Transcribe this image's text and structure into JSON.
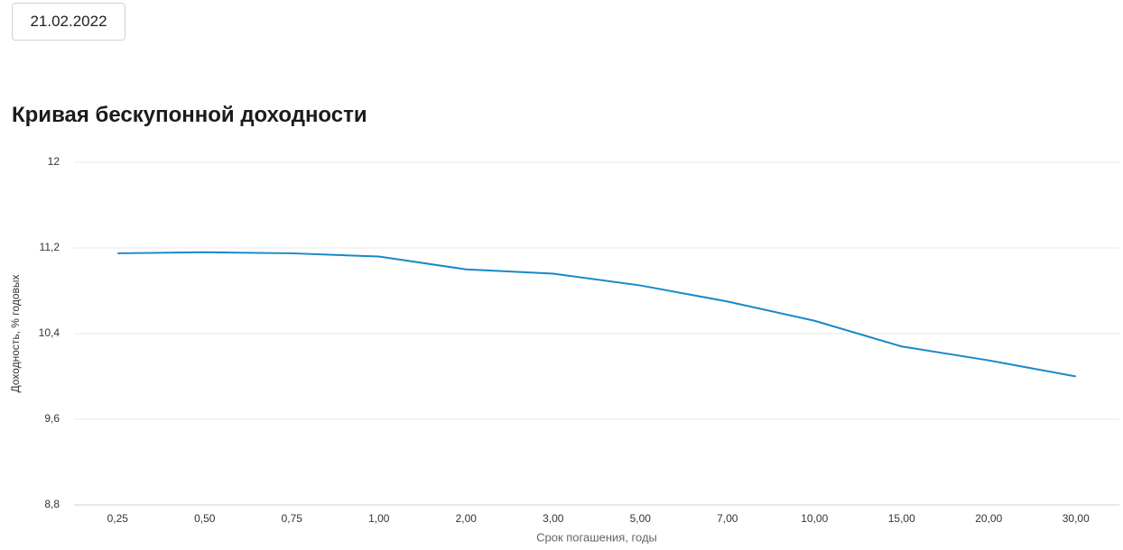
{
  "date_picker": "21.02.2022",
  "chart_data": {
    "type": "line",
    "title": "Кривая бескупонной доходности",
    "xlabel": "Срок погашения, годы",
    "ylabel": "Доходность, % годовых",
    "categories": [
      "0,25",
      "0,50",
      "0,75",
      "1,00",
      "2,00",
      "3,00",
      "5,00",
      "7,00",
      "10,00",
      "15,00",
      "20,00",
      "30,00"
    ],
    "values": [
      11.15,
      11.16,
      11.15,
      11.12,
      11.0,
      10.96,
      10.85,
      10.7,
      10.52,
      10.28,
      10.15,
      10.0
    ],
    "color": "#1a87c9",
    "ylim": [
      8.8,
      12
    ],
    "yticks": [
      {
        "value": 8.8,
        "label": "8,8"
      },
      {
        "value": 9.6,
        "label": "9,6"
      },
      {
        "value": 10.4,
        "label": "10,4"
      },
      {
        "value": 11.2,
        "label": "11,2"
      },
      12
    ],
    "grid": true
  }
}
